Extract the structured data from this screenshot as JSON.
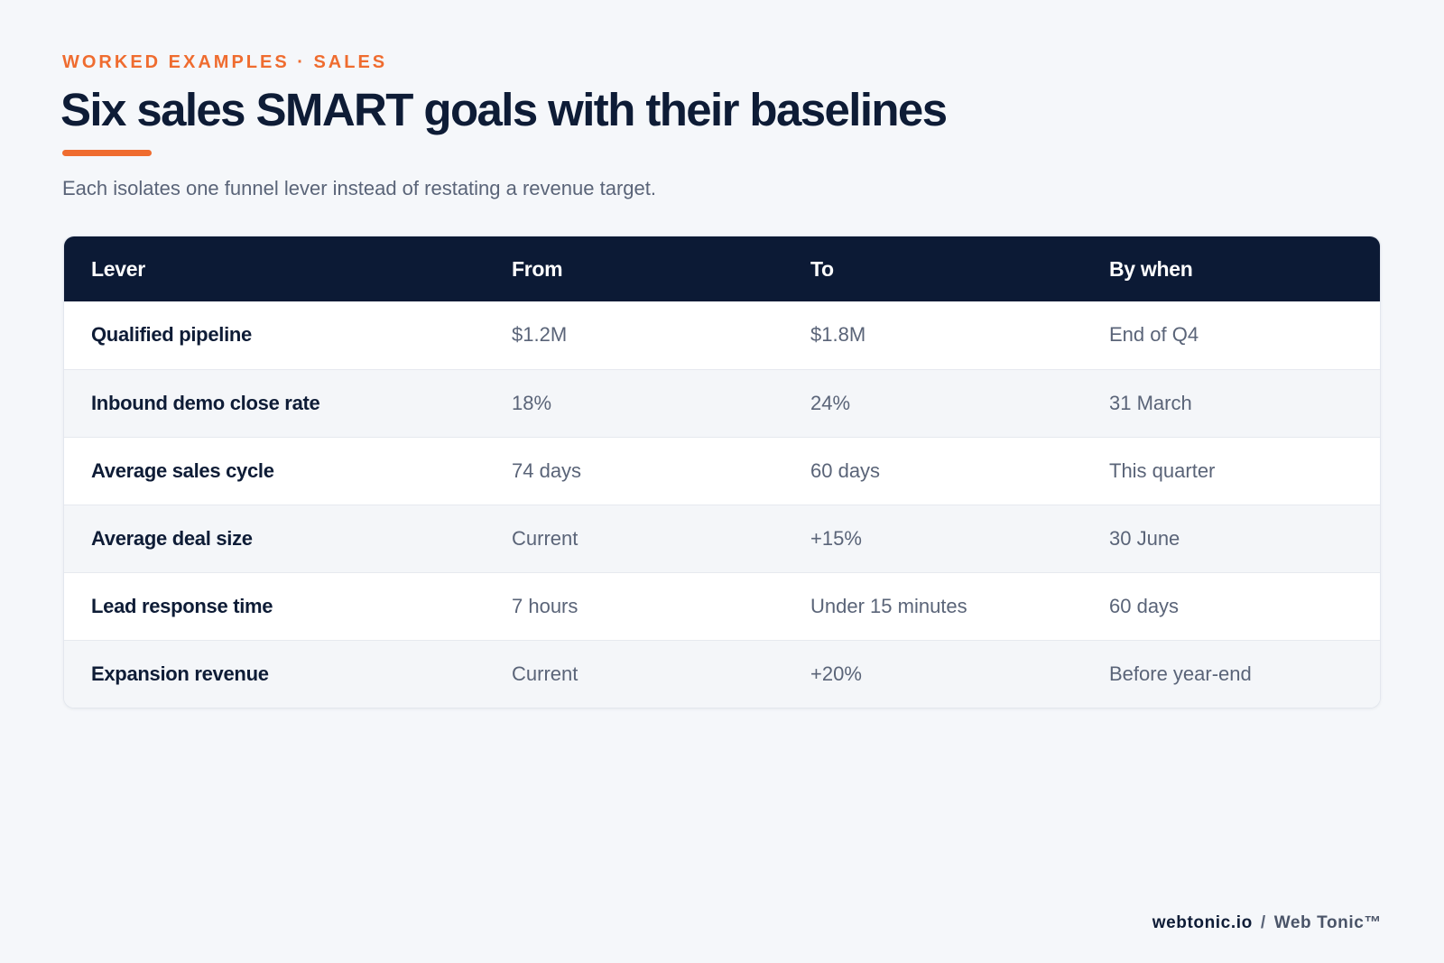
{
  "header": {
    "eyebrow": "WORKED EXAMPLES · SALES",
    "title": "Six sales SMART goals with their baselines",
    "subtitle": "Each isolates one funnel lever instead of restating a revenue target."
  },
  "colors": {
    "accent": "#ef6c2f",
    "header_bg": "#0c1a35",
    "text_primary": "#0e1c36",
    "text_secondary": "#5a6478",
    "row_alt": "#f4f6f9",
    "page_bg": "#f5f7fa"
  },
  "table": {
    "columns": [
      "Lever",
      "From",
      "To",
      "By when"
    ],
    "rows": [
      {
        "lever": "Qualified pipeline",
        "from": "$1.2M",
        "to": "$1.8M",
        "by_when": "End of Q4"
      },
      {
        "lever": "Inbound demo close rate",
        "from": "18%",
        "to": "24%",
        "by_when": "31 March"
      },
      {
        "lever": "Average sales cycle",
        "from": "74 days",
        "to": "60 days",
        "by_when": "This quarter"
      },
      {
        "lever": "Average deal size",
        "from": "Current",
        "to": "+15%",
        "by_when": "30 June"
      },
      {
        "lever": "Lead response time",
        "from": "7 hours",
        "to": "Under 15 minutes",
        "by_when": "60 days"
      },
      {
        "lever": "Expansion revenue",
        "from": "Current",
        "to": "+20%",
        "by_when": "Before year-end"
      }
    ]
  },
  "footer": {
    "domain": "webtonic.io",
    "separator": "/",
    "brand": "Web Tonic™"
  }
}
